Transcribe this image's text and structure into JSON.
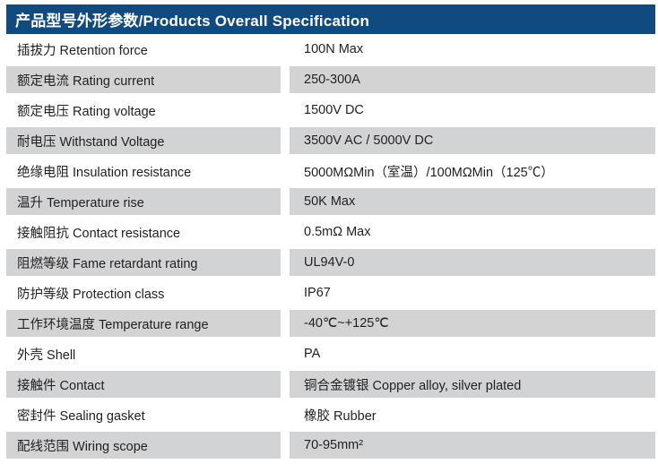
{
  "header": {
    "title": "产品型号外形参数/Products Overall Specification"
  },
  "colors": {
    "header_bg": "#114a7e",
    "header_text": "#ffffff",
    "shaded_row_bg": "#d1d3d4",
    "text": "#231f20"
  },
  "table": {
    "columns": [
      "parameter",
      "value"
    ],
    "rows": [
      {
        "label": "插拔力 Retention force",
        "value": "100N Max",
        "shaded": false
      },
      {
        "label": "额定电流 Rating current",
        "value": "250-300A",
        "shaded": true
      },
      {
        "label": "额定电压 Rating voltage",
        "value": "1500V DC",
        "shaded": false
      },
      {
        "label": "耐电压 Withstand Voltage",
        "value": "3500V AC / 5000V DC",
        "shaded": true
      },
      {
        "label": "绝缘电阻 Insulation resistance",
        "value": "5000MΩMin（室温）/100MΩMin（125℃）",
        "shaded": false
      },
      {
        "label": "温升 Temperature rise",
        "value": "50K Max",
        "shaded": true
      },
      {
        "label": "接触阻抗 Contact resistance",
        "value": "0.5mΩ Max",
        "shaded": false
      },
      {
        "label": "阻燃等级 Fame retardant rating",
        "value": "UL94V-0",
        "shaded": true
      },
      {
        "label": "防护等级 Protection class",
        "value": "IP67",
        "shaded": false
      },
      {
        "label": "工作环境温度 Temperature range",
        "value": "-40℃~+125℃",
        "shaded": true
      },
      {
        "label": "外壳 Shell",
        "value": "PA",
        "shaded": false
      },
      {
        "label": "接触件 Contact",
        "value": "铜合金镀银 Copper alloy, silver plated",
        "shaded": true
      },
      {
        "label": "密封件 Sealing gasket",
        "value": "橡胶 Rubber",
        "shaded": false
      },
      {
        "label": "配线范围 Wiring scope",
        "value": "70-95mm²",
        "shaded": true
      }
    ]
  }
}
